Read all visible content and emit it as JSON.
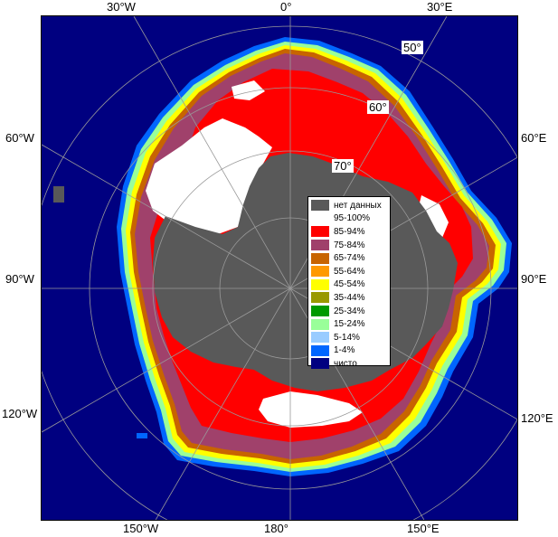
{
  "colors": {
    "ocean": "#000080",
    "land": "#595959",
    "ice_100": "#ffffff",
    "ice_90": "#ff0000",
    "ice_80": "#a0416b",
    "ice_70": "#c86400",
    "ice_60": "#ff9900",
    "ice_50": "#ffff00",
    "ice_40": "#999900",
    "ice_30": "#009900",
    "ice_20": "#99ff99",
    "ice_10": "#99ccff",
    "ice_01": "#0066ff",
    "grid": "#999999"
  },
  "longitude_labels": {
    "w30": "30°W",
    "zero": "0°",
    "e30": "30°E",
    "w60": "60°W",
    "e60": "60°E",
    "w90": "90°W",
    "e90": "90°E",
    "w120": "120°W",
    "e120": "120°E",
    "w150": "150°W",
    "lon180": "180°",
    "e150": "150°E"
  },
  "latitude_labels": {
    "lat50": "50°",
    "lat60": "60°",
    "lat70": "70°"
  },
  "legend": [
    {
      "label": "нет данных",
      "color": "#595959"
    },
    {
      "label": "95-100%",
      "color": "#ffffff"
    },
    {
      "label": "85-94%",
      "color": "#ff0000"
    },
    {
      "label": "75-84%",
      "color": "#a0416b"
    },
    {
      "label": "65-74%",
      "color": "#c86400"
    },
    {
      "label": "55-64%",
      "color": "#ff9900"
    },
    {
      "label": "45-54%",
      "color": "#ffff00"
    },
    {
      "label": "35-44%",
      "color": "#999900"
    },
    {
      "label": "25-34%",
      "color": "#009900"
    },
    {
      "label": "15-24%",
      "color": "#99ff99"
    },
    {
      "label": "5-14%",
      "color": "#99ccff"
    },
    {
      "label": "1-4%",
      "color": "#0066ff"
    },
    {
      "label": "чисто",
      "color": "#000080"
    }
  ]
}
